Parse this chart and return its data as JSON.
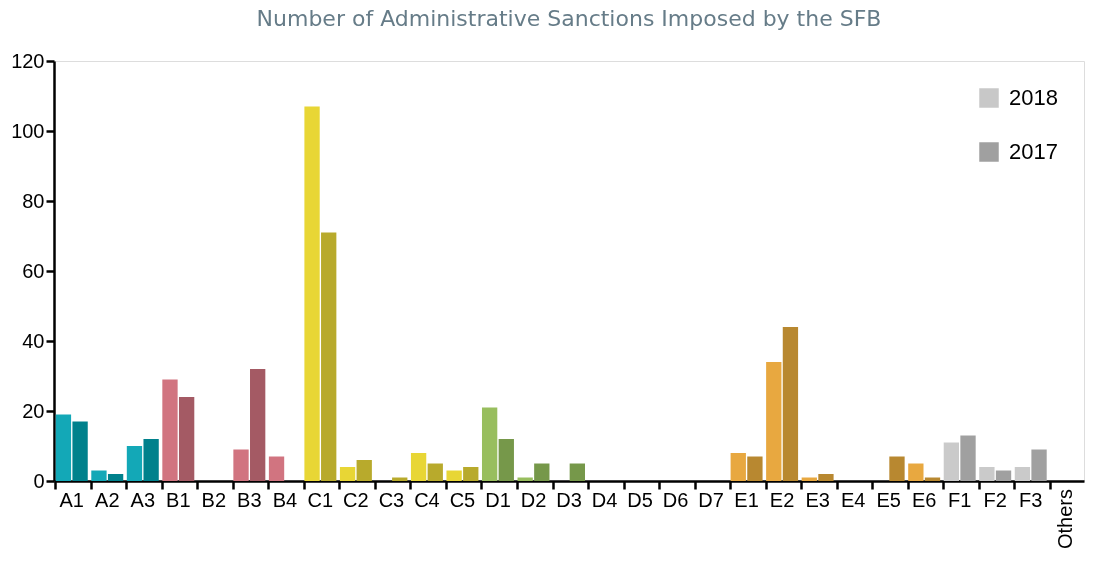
{
  "chart_data": {
    "type": "bar",
    "title": "Number of Administrative Sanctions Imposed by the SFB",
    "categories": [
      "A1",
      "A2",
      "A3",
      "B1",
      "B2",
      "B3",
      "B4",
      "C1",
      "C2",
      "C3",
      "C4",
      "C5",
      "D1",
      "D2",
      "D3",
      "D4",
      "D5",
      "D6",
      "D7",
      "E1",
      "E2",
      "E3",
      "E4",
      "E5",
      "E6",
      "F1",
      "F2",
      "F3",
      "Others"
    ],
    "series": [
      {
        "name": "2018",
        "color": "#c8c8c8",
        "values": [
          19,
          3,
          10,
          29,
          0,
          9,
          7,
          107,
          4,
          0,
          8,
          3,
          21,
          1,
          0,
          0,
          0,
          0,
          0,
          8,
          34,
          1,
          0,
          0,
          5,
          11,
          4,
          4,
          0
        ],
        "colors": [
          "#13a8b7",
          "#13a8b7",
          "#13a8b7",
          "#d17480",
          "#d17480",
          "#d17480",
          "#d17480",
          "#e8d635",
          "#e8d635",
          "#e8d635",
          "#e8d635",
          "#e8d635",
          "#98be5e",
          "#98be5e",
          "#98be5e",
          "#98be5e",
          "#98be5e",
          "#98be5e",
          "#98be5e",
          "#e8a840",
          "#e8a840",
          "#e8a840",
          "#e8a840",
          "#e8a840",
          "#e8a840",
          "#cacaca",
          "#cacaca",
          "#cacaca",
          "#2f6f5f"
        ]
      },
      {
        "name": "2017",
        "color": "#a0a0a0",
        "values": [
          17,
          2,
          12,
          24,
          0,
          32,
          0,
          71,
          6,
          1,
          5,
          4,
          12,
          5,
          5,
          0,
          0,
          0,
          0,
          7,
          44,
          2,
          0,
          7,
          1,
          13,
          3,
          9,
          0
        ],
        "colors": [
          "#00818c",
          "#00818c",
          "#00818c",
          "#a45a64",
          "#a45a64",
          "#a45a64",
          "#a45a64",
          "#b8aa2c",
          "#b8aa2c",
          "#b8aa2c",
          "#b8aa2c",
          "#b8aa2c",
          "#76984a",
          "#76984a",
          "#76984a",
          "#76984a",
          "#76984a",
          "#76984a",
          "#76984a",
          "#b88830",
          "#b88830",
          "#b88830",
          "#b88830",
          "#b88830",
          "#b88830",
          "#a0a0a0",
          "#a0a0a0",
          "#a0a0a0",
          "#2f6f5f"
        ]
      }
    ],
    "ylim": [
      0,
      120
    ],
    "yticks": [
      0,
      20,
      40,
      60,
      80,
      100,
      120
    ],
    "grid": false,
    "legend": "top right"
  }
}
